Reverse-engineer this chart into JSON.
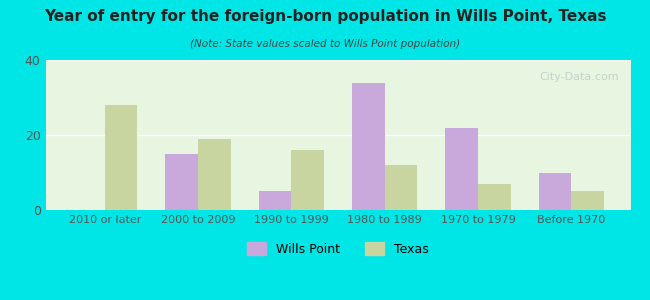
{
  "title": "Year of entry for the foreign-born population in Wills Point, Texas",
  "subtitle": "(Note: State values scaled to Wills Point population)",
  "categories": [
    "2010 or later",
    "2000 to 2009",
    "1990 to 1999",
    "1980 to 1989",
    "1970 to 1979",
    "Before 1970"
  ],
  "wills_point": [
    0,
    15,
    5,
    34,
    22,
    10
  ],
  "texas": [
    28,
    19,
    16,
    12,
    7,
    5
  ],
  "wills_point_color": "#c9a8dc",
  "texas_color": "#c8d5a0",
  "background_outer": "#00e5e5",
  "background_inner": "#e8f5e0",
  "ylim": [
    0,
    40
  ],
  "yticks": [
    0,
    20,
    40
  ],
  "bar_width": 0.35,
  "grid_color": "#ffffff",
  "axis_label_color": "#555555",
  "title_color": "#222222",
  "subtitle_color": "#444444"
}
